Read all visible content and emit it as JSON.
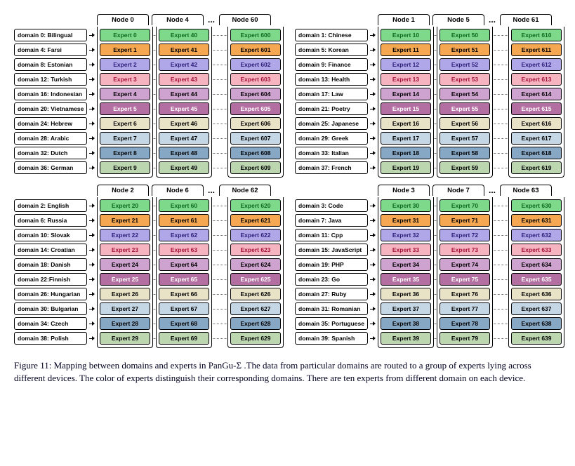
{
  "colors": {
    "row1_fill": "#7fd98a",
    "row1_text": "#0a6b20",
    "row2_fill": "#f5a752",
    "row2_text": "#000",
    "row3_fill": "#b0a7e8",
    "row3_text": "#2a1f7a",
    "row4_fill": "#f6b3c0",
    "row4_text": "#a6133a",
    "row5_fill": "#cfa3cf",
    "row5_text": "#000",
    "row6_fill": "#b36fa1",
    "row6_text": "#fff",
    "row7_fill": "#e8e2c7",
    "row7_text": "#000",
    "row8_fill": "#c5d6e4",
    "row8_text": "#000",
    "row9_fill": "#87a8c5",
    "row9_text": "#000",
    "row10_fill": "#bcd6b0",
    "row10_text": "#000"
  },
  "quadrants": [
    {
      "nodes": [
        "Node 0",
        "Node 4",
        "Node 60"
      ],
      "domains": [
        "domain 0: Bilingual",
        "domain 4: Farsi",
        "domain 8: Estonian",
        "domain 12: Turkish",
        "domain 16: Indonesian",
        "domain 20: Vietnamese",
        "domain 24: Hebrew",
        "domain 28: Arabic",
        "domain 32: Dutch",
        "domain 36: German"
      ],
      "experts": [
        [
          "Expert 0",
          "Expert 40",
          "Expert 600"
        ],
        [
          "Expert 1",
          "Expert 41",
          "Expert 601"
        ],
        [
          "Expert 2",
          "Expert 42",
          "Expert 602"
        ],
        [
          "Expert 3",
          "Expert 43",
          "Expert 603"
        ],
        [
          "Expert 4",
          "Expert 44",
          "Expert 604"
        ],
        [
          "Expert 5",
          "Expert 45",
          "Expert 605"
        ],
        [
          "Expert 6",
          "Expert 46",
          "Expert 606"
        ],
        [
          "Expert 7",
          "Expert 47",
          "Expert 607"
        ],
        [
          "Expert 8",
          "Expert 48",
          "Expert 608"
        ],
        [
          "Expert 9",
          "Expert 49",
          "Expert 609"
        ]
      ]
    },
    {
      "nodes": [
        "Node 1",
        "Node 5",
        "Node 61"
      ],
      "domains": [
        "domain 1: Chinese",
        "domain 5: Korean",
        "domain 9: Finance",
        "domain 13: Health",
        "domain 17: Law",
        "domain 21: Poetry",
        "domain 25: Japanese",
        "domain 29: Greek",
        "domain 33: Italian",
        "domain 37: French"
      ],
      "experts": [
        [
          "Expert 10",
          "Expert 50",
          "Expert 610"
        ],
        [
          "Expert 11",
          "Expert 51",
          "Expert 611"
        ],
        [
          "Expert 12",
          "Expert 52",
          "Expert 612"
        ],
        [
          "Expert 13",
          "Expert 53",
          "Expert 613"
        ],
        [
          "Expert 14",
          "Expert 54",
          "Expert 614"
        ],
        [
          "Expert 15",
          "Expert 55",
          "Expert 615"
        ],
        [
          "Expert 16",
          "Expert 56",
          "Expert 616"
        ],
        [
          "Expert 17",
          "Expert 57",
          "Expert 617"
        ],
        [
          "Expert 18",
          "Expert 58",
          "Expert 618"
        ],
        [
          "Expert 19",
          "Expert 59",
          "Expert 619"
        ]
      ]
    },
    {
      "nodes": [
        "Node 2",
        "Node 6",
        "Node 62"
      ],
      "domains": [
        "domain 2: English",
        "domain 6: Russia",
        "domain 10: Slovak",
        "domain 14: Croatian",
        "domain 18: Danish",
        "domain 22:Finnish",
        "domain 26: Hungarian",
        "domain 30: Bulgarian",
        "domain 34: Czech",
        "domain 38: Polish"
      ],
      "experts": [
        [
          "Expert 20",
          "Expert 60",
          "Expert 620"
        ],
        [
          "Expert 21",
          "Expert 61",
          "Expert 621"
        ],
        [
          "Expert 22",
          "Expert 62",
          "Expert 622"
        ],
        [
          "Expert 23",
          "Expert 63",
          "Expert 623"
        ],
        [
          "Expert 24",
          "Expert 64",
          "Expert 624"
        ],
        [
          "Expert 25",
          "Expert 65",
          "Expert 625"
        ],
        [
          "Expert 26",
          "Expert 66",
          "Expert 626"
        ],
        [
          "Expert 27",
          "Expert 67",
          "Expert 627"
        ],
        [
          "Expert 28",
          "Expert 68",
          "Expert 628"
        ],
        [
          "Expert 29",
          "Expert 69",
          "Expert 629"
        ]
      ]
    },
    {
      "nodes": [
        "Node 3",
        "Node 7",
        "Node 63"
      ],
      "domains": [
        "domain 3: Code",
        "domain 7: Java",
        "domain 11: Cpp",
        "domain 15: JavaScript",
        "domain 19: PHP",
        "domain 23: Go",
        "domain 27: Ruby",
        "domain 31: Romanian",
        "domain 35: Portuguese",
        "domain 39: Spanish"
      ],
      "experts": [
        [
          "Expert 30",
          "Expert 70",
          "Expert 630"
        ],
        [
          "Expert 31",
          "Expert 71",
          "Expert 631"
        ],
        [
          "Expert 32",
          "Expert 72",
          "Expert 632"
        ],
        [
          "Expert 33",
          "Expert 73",
          "Expert 633"
        ],
        [
          "Expert 34",
          "Expert 74",
          "Expert 634"
        ],
        [
          "Expert 35",
          "Expert 75",
          "Expert 635"
        ],
        [
          "Expert 36",
          "Expert 76",
          "Expert 636"
        ],
        [
          "Expert 37",
          "Expert 77",
          "Expert 637"
        ],
        [
          "Expert 38",
          "Expert 78",
          "Expert 638"
        ],
        [
          "Expert 39",
          "Expert 79",
          "Expert 639"
        ]
      ]
    }
  ],
  "ellipsis": "...",
  "caption": "Figure 11: Mapping between domains and experts in PanGu-Σ .The data from particular domains are routed to a group of experts lying across different devices. The color of experts distinguish their corresponding domains. There are ten experts from different domain on each device."
}
